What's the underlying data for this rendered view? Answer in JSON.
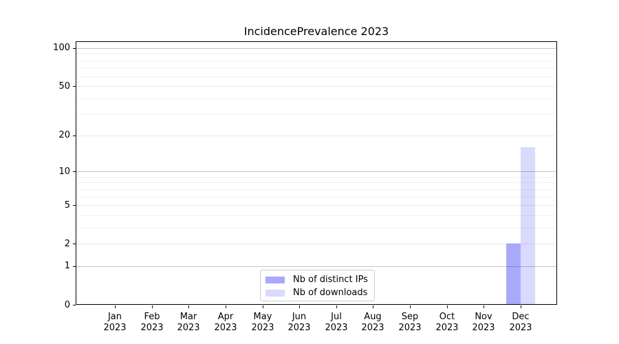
{
  "chart_data": {
    "type": "bar",
    "title": "IncidencePrevalence 2023",
    "categories": [
      "Jan",
      "Feb",
      "Mar",
      "Apr",
      "May",
      "Jun",
      "Jul",
      "Aug",
      "Sep",
      "Oct",
      "Nov",
      "Dec"
    ],
    "x_year": "2023",
    "series": [
      {
        "name": "Nb of distinct IPs",
        "color": "rgba(10,10,245,0.35)",
        "values": [
          0,
          0,
          0,
          0,
          0,
          0,
          0,
          0,
          0,
          0,
          0,
          2
        ]
      },
      {
        "name": "Nb of downloads",
        "color": "rgba(10,10,245,0.15)",
        "values": [
          0,
          0,
          0,
          0,
          0,
          0,
          0,
          0,
          0,
          0,
          0,
          16
        ]
      }
    ],
    "y_axis": {
      "scale": "log1p",
      "min": 0,
      "max": 113,
      "ticks": [
        0,
        1,
        2,
        5,
        10,
        20,
        50,
        100
      ],
      "emphasized_gridlines": [
        1,
        10,
        100
      ],
      "minor_gridlines": [
        3,
        4,
        6,
        7,
        8,
        9,
        30,
        40,
        60,
        70,
        80,
        90
      ]
    },
    "legend": {
      "position": "lower center",
      "items": [
        "Nb of distinct IPs",
        "Nb of downloads"
      ]
    },
    "grid": true,
    "colors": {
      "grid_emphasized": "#c6c6c6",
      "grid_major_light": "#e9e9e9",
      "grid_minor": "#f0f0f0",
      "spine": "#000000",
      "background": "#ffffff"
    }
  }
}
